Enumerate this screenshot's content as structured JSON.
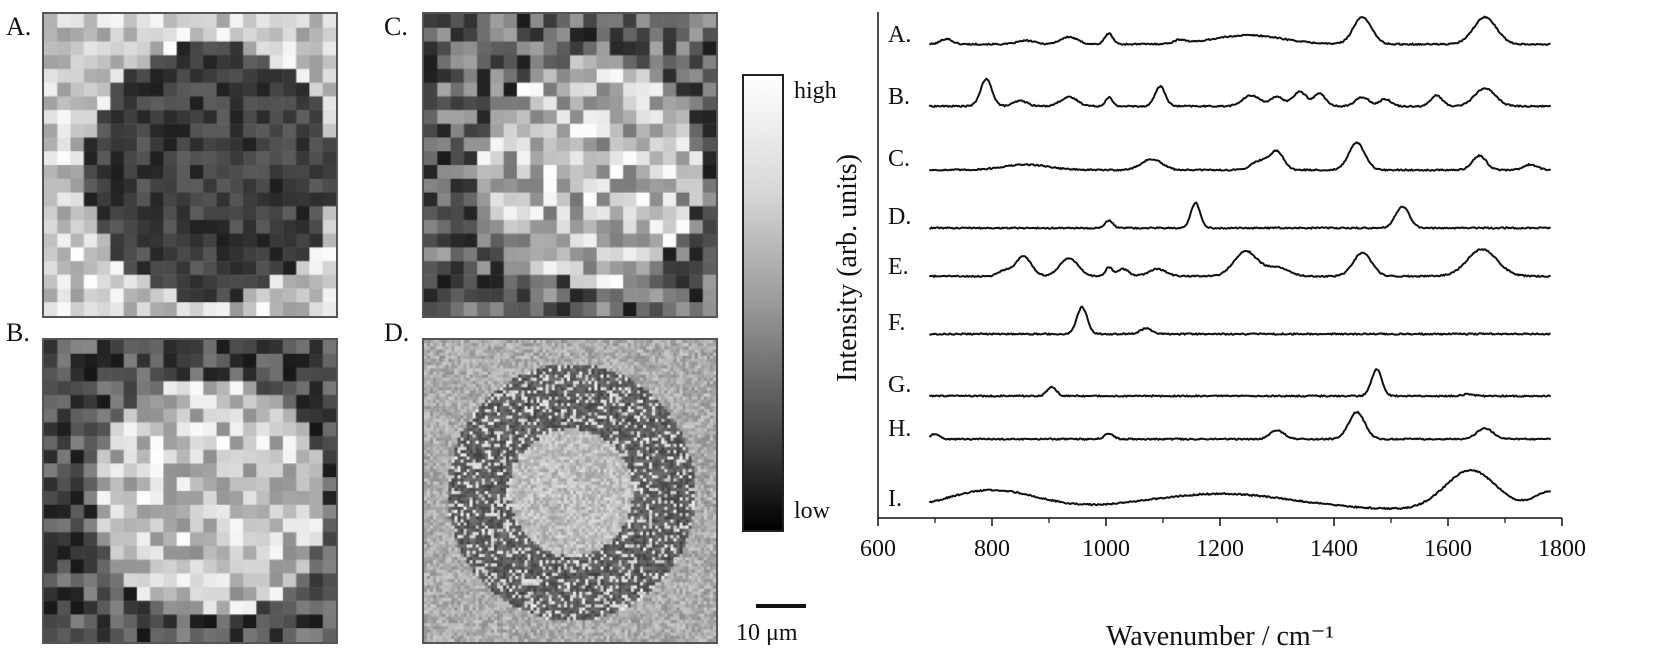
{
  "maps": [
    {
      "label": "A.",
      "seed": 11,
      "style": "dark-center"
    },
    {
      "label": "B.",
      "seed": 23,
      "style": "bright-center"
    },
    {
      "label": "C.",
      "seed": 37,
      "style": "mixed"
    },
    {
      "label": "D.",
      "seed": 51,
      "style": "fine"
    }
  ],
  "colorbar": {
    "high_label": "high",
    "low_label": "low"
  },
  "scalebar": {
    "label": "10 μm"
  },
  "chart_data": {
    "type": "line",
    "xlabel": "Wavenumber / cm⁻¹",
    "ylabel": "Intensity (arb. units)",
    "xlim": [
      600,
      1800
    ],
    "xticks": [
      600,
      800,
      1000,
      1200,
      1400,
      1600,
      1800
    ],
    "x_range": [
      690,
      1780
    ],
    "series": [
      {
        "name": "A.",
        "baseline": 0.1,
        "peaks": [
          [
            720,
            0.3,
            10
          ],
          [
            860,
            0.2,
            15
          ],
          [
            935,
            0.4,
            15
          ],
          [
            1005,
            0.6,
            7
          ],
          [
            1130,
            0.2,
            10
          ],
          [
            1250,
            0.5,
            60
          ],
          [
            1450,
            1.5,
            16
          ],
          [
            1665,
            1.5,
            20
          ]
        ]
      },
      {
        "name": "B.",
        "baseline": 0.1,
        "peaks": [
          [
            790,
            1.5,
            10
          ],
          [
            850,
            0.3,
            12
          ],
          [
            935,
            0.5,
            15
          ],
          [
            1005,
            0.5,
            6
          ],
          [
            1095,
            1.1,
            9
          ],
          [
            1255,
            0.6,
            15
          ],
          [
            1300,
            0.5,
            12
          ],
          [
            1340,
            0.8,
            12
          ],
          [
            1375,
            0.7,
            10
          ],
          [
            1450,
            0.5,
            12
          ],
          [
            1490,
            0.4,
            10
          ],
          [
            1580,
            0.6,
            10
          ],
          [
            1665,
            1.0,
            18
          ]
        ]
      },
      {
        "name": "C.",
        "baseline": 0.0,
        "peaks": [
          [
            860,
            0.3,
            40
          ],
          [
            1080,
            0.6,
            18
          ],
          [
            1270,
            0.5,
            15
          ],
          [
            1300,
            1.0,
            12
          ],
          [
            1440,
            1.5,
            14
          ],
          [
            1655,
            0.8,
            12
          ],
          [
            1745,
            0.3,
            12
          ]
        ]
      },
      {
        "name": "D.",
        "baseline": 0.0,
        "peaks": [
          [
            1005,
            0.4,
            7
          ],
          [
            1157,
            1.4,
            8
          ],
          [
            1520,
            1.2,
            12
          ]
        ]
      },
      {
        "name": "E.",
        "baseline": 0.1,
        "peaks": [
          [
            820,
            0.3,
            10
          ],
          [
            855,
            1.1,
            14
          ],
          [
            935,
            1.0,
            16
          ],
          [
            1005,
            0.5,
            6
          ],
          [
            1030,
            0.4,
            10
          ],
          [
            1090,
            0.4,
            15
          ],
          [
            1245,
            1.4,
            20
          ],
          [
            1300,
            0.5,
            20
          ],
          [
            1450,
            1.3,
            16
          ],
          [
            1660,
            1.5,
            26
          ]
        ]
      },
      {
        "name": "F.",
        "baseline": 0.0,
        "peaks": [
          [
            958,
            1.5,
            9
          ],
          [
            1070,
            0.3,
            10
          ]
        ]
      },
      {
        "name": "G.",
        "baseline": 0.0,
        "peaks": [
          [
            905,
            0.5,
            8
          ],
          [
            1475,
            1.5,
            9
          ],
          [
            1635,
            0.1,
            10
          ]
        ]
      },
      {
        "name": "H.",
        "baseline": 0.05,
        "peaks": [
          [
            700,
            0.3,
            8
          ],
          [
            1005,
            0.3,
            8
          ],
          [
            1300,
            0.5,
            12
          ],
          [
            1440,
            1.5,
            14
          ],
          [
            1665,
            0.6,
            14
          ]
        ]
      },
      {
        "name": "I.",
        "baseline": 0.0,
        "peaks": [
          [
            800,
            1.1,
            80
          ],
          [
            1200,
            0.9,
            130
          ],
          [
            1640,
            2.2,
            45
          ],
          [
            1780,
            1.0,
            30
          ]
        ]
      }
    ]
  }
}
